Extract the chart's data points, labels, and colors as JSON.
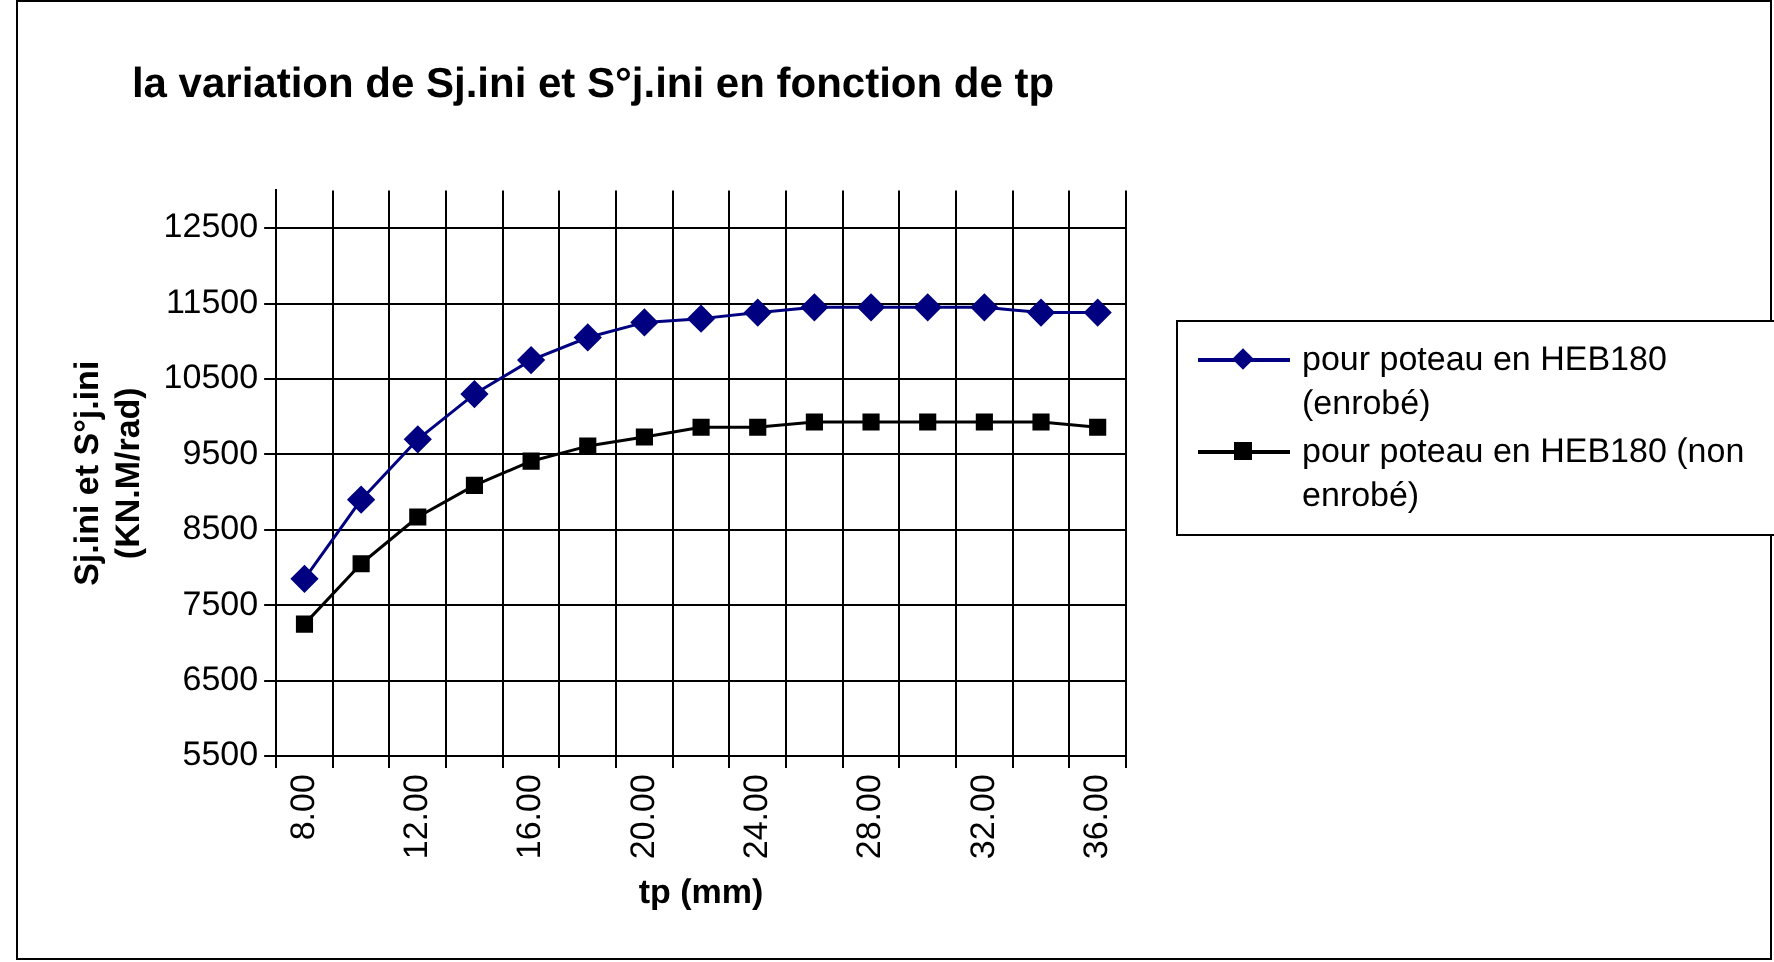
{
  "chart_data": {
    "type": "line",
    "title": "la variation de Sj.ini et S°j.ini en fonction de tp",
    "xlabel": "tp (mm)",
    "ylabel": "Sj.ini et S°j.ini (KN.M/rad)",
    "categories": [
      "8.00",
      null,
      "12.00",
      null,
      "16.00",
      null,
      "20.00",
      null,
      "24.00",
      null,
      "28.00",
      null,
      "32.00",
      null,
      "36.00"
    ],
    "series": [
      {
        "name": "pour poteau en HEB180 (enrobé)",
        "color": "#000080",
        "marker": "diamond",
        "values": [
          7850,
          8900,
          9700,
          10300,
          10750,
          11050,
          11250,
          11300,
          11380,
          11450,
          11450,
          11450,
          11450,
          11380,
          11380
        ]
      },
      {
        "name": "pour poteau en HEB180 (non enrobé)",
        "color": "#000000",
        "marker": "square",
        "values": [
          7250,
          8050,
          8670,
          9090,
          9410,
          9610,
          9730,
          9860,
          9860,
          9930,
          9930,
          9930,
          9930,
          9930,
          9860
        ]
      }
    ],
    "ylim": [
      5500,
      13000
    ],
    "yticks": [
      5500,
      6500,
      7500,
      8500,
      9500,
      10500,
      11500,
      12500
    ],
    "grid": true,
    "legend": "right",
    "line_style": "solid"
  }
}
